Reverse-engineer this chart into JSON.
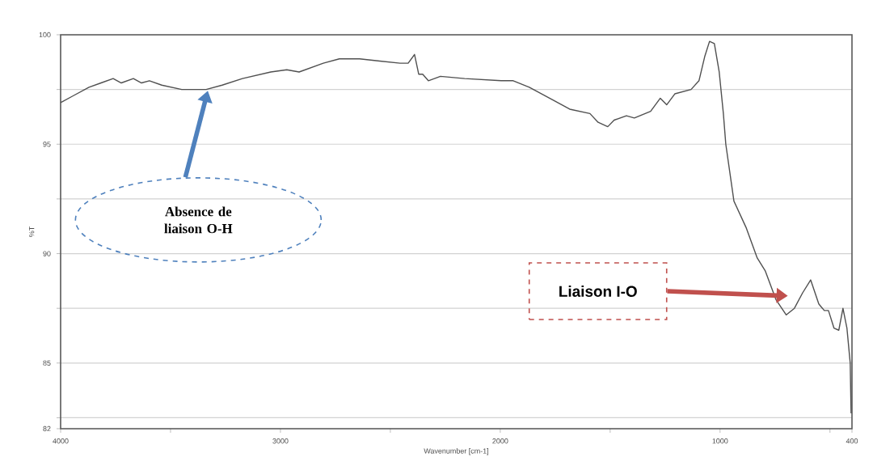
{
  "chart_data": {
    "type": "line",
    "xlabel": "Wavenumber [cm-1]",
    "ylabel": "%T",
    "color": "#505050",
    "grid": "y",
    "xlim": [
      4000,
      400
    ],
    "xticks": [
      4000,
      {
        "value": 3500,
        "label": null
      },
      3000,
      {
        "value": 2500,
        "label": null
      },
      2000,
      {
        "value": 1500,
        "label": null
      },
      1000,
      {
        "value": 500,
        "label": null
      },
      400
    ],
    "ylim": [
      82,
      100
    ],
    "yticks": [
      82,
      {
        "value": 82.5,
        "label": null
      },
      85,
      {
        "value": 87.5,
        "label": null
      },
      90,
      {
        "value": 92.5,
        "label": null
      },
      95,
      {
        "value": 97.5,
        "label": null
      },
      100
    ],
    "x": [
      4000,
      3945,
      3871,
      3816,
      3761,
      3724,
      3669,
      3632,
      3596,
      3540,
      3449,
      3338,
      3265,
      3173,
      3044,
      2971,
      2915,
      2805,
      2732,
      2640,
      2548,
      2456,
      2419,
      2390,
      2371,
      2353,
      2327,
      2272,
      2162,
      1996,
      1941,
      1868,
      1757,
      1684,
      1592,
      1555,
      1511,
      1482,
      1426,
      1390,
      1316,
      1272,
      1243,
      1206,
      1132,
      1096,
      1070,
      1048,
      1026,
      1004,
      985,
      974,
      937,
      882,
      831,
      794,
      746,
      699,
      662,
      625,
      588,
      551,
      526,
      507,
      482,
      460,
      441,
      423,
      408,
      404
    ],
    "values": [
      96.9,
      97.2,
      97.6,
      97.8,
      98.0,
      97.8,
      98.0,
      97.8,
      97.9,
      97.7,
      97.5,
      97.5,
      97.7,
      98.0,
      98.3,
      98.4,
      98.3,
      98.7,
      98.9,
      98.9,
      98.8,
      98.7,
      98.7,
      99.1,
      98.2,
      98.2,
      97.9,
      98.1,
      98.0,
      97.9,
      97.9,
      97.6,
      97.0,
      96.6,
      96.4,
      96.0,
      95.8,
      96.1,
      96.3,
      96.2,
      96.5,
      97.1,
      96.8,
      97.3,
      97.5,
      97.9,
      99.0,
      99.7,
      99.6,
      98.3,
      96.4,
      95.0,
      92.4,
      91.2,
      89.8,
      89.2,
      87.9,
      87.2,
      87.5,
      88.2,
      88.8,
      87.7,
      87.4,
      87.4,
      86.6,
      86.5,
      87.5,
      86.6,
      85.0,
      82.7
    ],
    "annotations": [
      "Absence de liaison O-H",
      "Liaison I-O"
    ]
  }
}
